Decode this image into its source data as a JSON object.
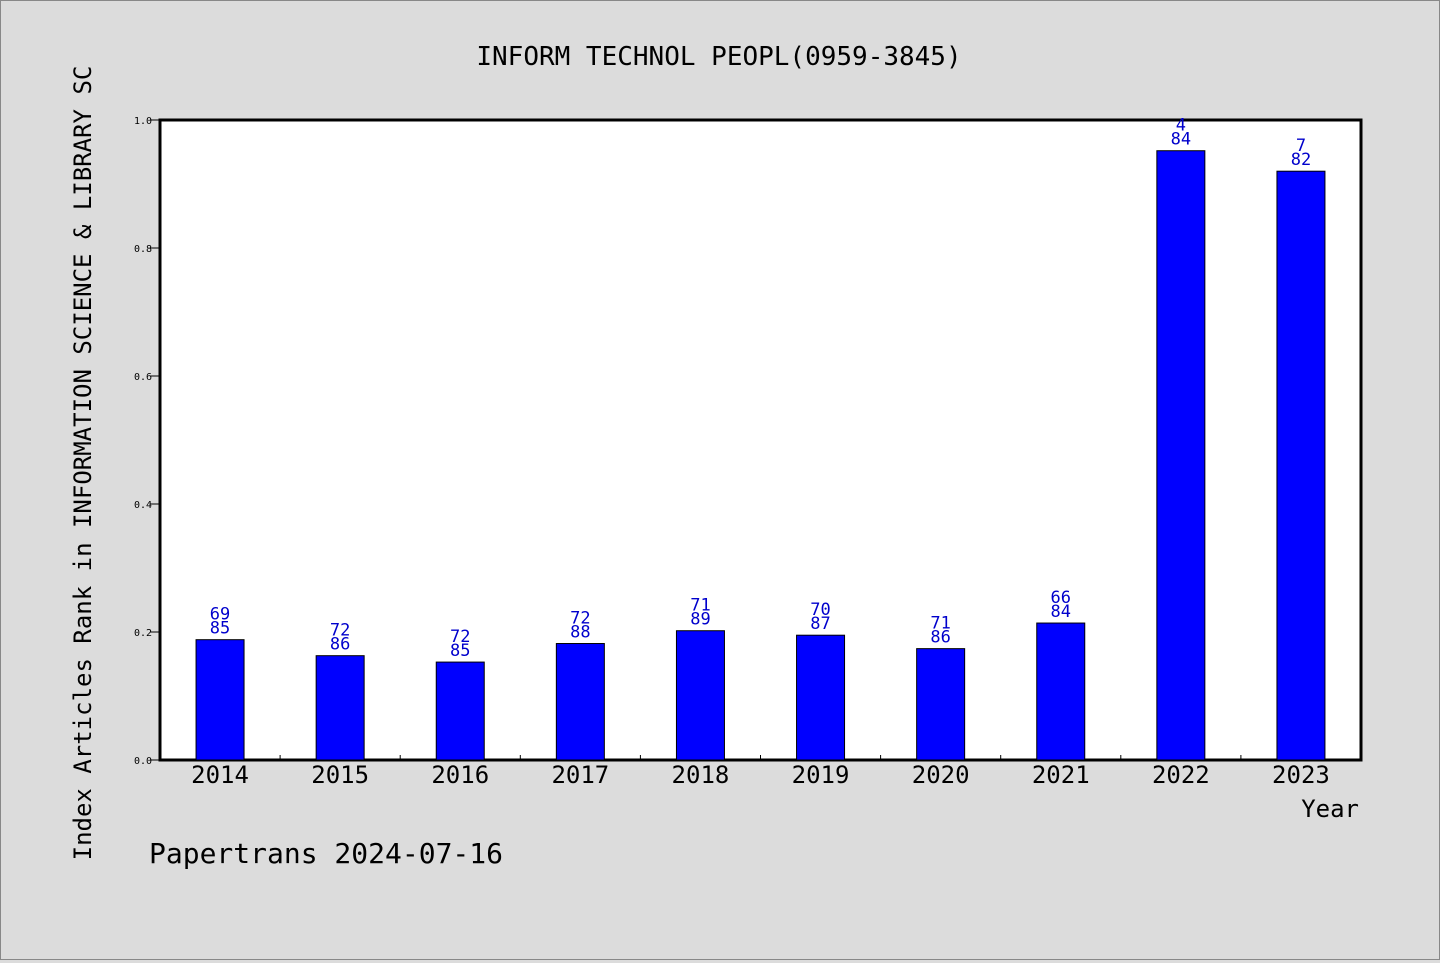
{
  "footer": {
    "text": "Papertrans 2024-07-16"
  },
  "chart_data": {
    "type": "bar",
    "title": "INFORM TECHNOL PEOPL(0959-3845)",
    "xlabel": "Year",
    "ylabel": "Index Articles Rank in INFORMATION SCIENCE & LIBRARY SC",
    "categories": [
      "2014",
      "2015",
      "2016",
      "2017",
      "2018",
      "2019",
      "2020",
      "2021",
      "2022",
      "2023"
    ],
    "values": [
      0.188,
      0.163,
      0.153,
      0.182,
      0.202,
      0.195,
      0.174,
      0.214,
      0.952,
      0.92
    ],
    "labels_top": [
      "69",
      "72",
      "72",
      "72",
      "71",
      "70",
      "71",
      "66",
      "4",
      "7"
    ],
    "labels_bottom": [
      "85",
      "86",
      "85",
      "88",
      "89",
      "87",
      "86",
      "84",
      "84",
      "82"
    ],
    "ylim": [
      0,
      1.0
    ],
    "yticks": [
      "0.0",
      "0.2",
      "0.4",
      "0.6",
      "0.8",
      "1.0"
    ],
    "grid": false,
    "colors": {
      "bar": "#0000ff",
      "label": "#0000cc",
      "axis": "#000000"
    }
  }
}
